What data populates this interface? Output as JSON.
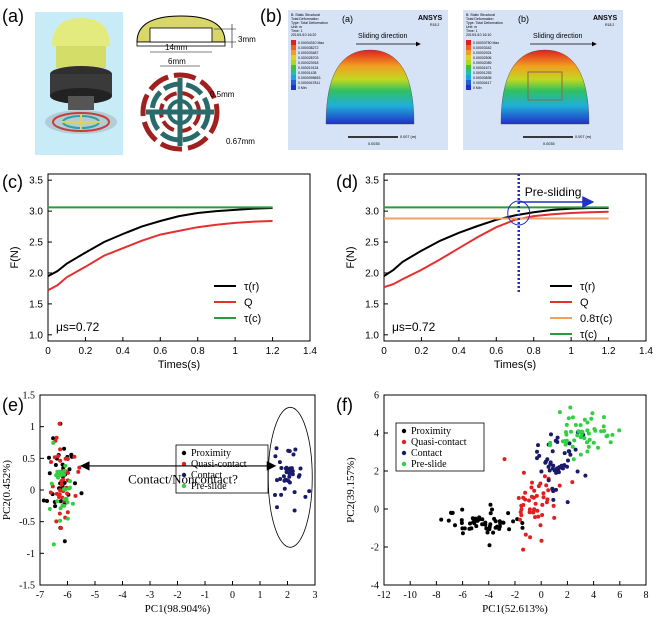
{
  "figure": {
    "panel_labels": [
      "(a)",
      "(b)",
      "(c)",
      "(d)",
      "(e)",
      "(f)"
    ]
  },
  "panel_a": {
    "dims": [
      "3mm",
      "14mm",
      "6mm",
      "0.5mm",
      "0.67mm"
    ]
  },
  "panel_b": {
    "sub_a": {
      "label": "(a)",
      "title_lines": [
        "B: Static Structural",
        "Total Deformation",
        "Type: Total Deformation",
        "Unit: m",
        "Time: 1",
        "2019/1/10 16:20"
      ],
      "legend_values": [
        "0.00004310 Max",
        "0.000038272",
        "0.000033487",
        "0.000028703",
        "0.000023918",
        "0.000019134",
        "0.00001435",
        "0.0000095653",
        "0.0000047811",
        "0 Min"
      ],
      "brand": "ANSYS",
      "version": "R18.2",
      "direction_text": "Sliding direction",
      "scale_text": "0.007 (m)",
      "scale_mid": "0.0035"
    },
    "sub_b": {
      "label": "(b)",
      "title_lines": [
        "B: Static Structural",
        "Total Deformation",
        "Type: Total Deformation",
        "Unit: m",
        "Time: 1",
        "2019/1/10 16:10"
      ],
      "legend_values": [
        "0.00003750 Max",
        "0.00003342",
        "0.00002924",
        "0.00002506",
        "0.00002089",
        "0.00001671",
        "0.00001253",
        "0.00000835",
        "0.00000417",
        "0 Min"
      ],
      "brand": "ANSYS",
      "version": "R18.2",
      "direction_text": "Sliding direction",
      "scale_text": "0.007 (m)",
      "scale_mid": "0.0035"
    }
  },
  "chart_data": [
    {
      "id": "c",
      "type": "line",
      "xlabel": "Times(s)",
      "ylabel": "F(N)",
      "xlim": [
        0,
        1.4
      ],
      "ylim": [
        0.9,
        3.6
      ],
      "xticks": [
        "0",
        "0.2",
        "0.4",
        "0.6",
        "0.8",
        "1",
        "1.2",
        "1.4"
      ],
      "yticks": [
        "1.0",
        "1.5",
        "2.0",
        "2.5",
        "3.0",
        "3.5"
      ],
      "annotation": "μs=0.72",
      "series": [
        {
          "name": "τ(r)",
          "color": "#000000",
          "x": [
            0,
            0.05,
            0.1,
            0.2,
            0.3,
            0.4,
            0.5,
            0.6,
            0.7,
            0.8,
            0.9,
            1.0,
            1.1,
            1.2
          ],
          "y": [
            1.95,
            2.03,
            2.15,
            2.33,
            2.5,
            2.63,
            2.75,
            2.84,
            2.92,
            2.97,
            3.0,
            3.02,
            3.04,
            3.05
          ]
        },
        {
          "name": "Q",
          "color": "#e53030",
          "x": [
            0,
            0.05,
            0.1,
            0.2,
            0.3,
            0.4,
            0.5,
            0.6,
            0.7,
            0.8,
            0.9,
            1.0,
            1.1,
            1.2
          ],
          "y": [
            1.72,
            1.8,
            1.93,
            2.1,
            2.28,
            2.4,
            2.52,
            2.62,
            2.68,
            2.74,
            2.78,
            2.81,
            2.83,
            2.84
          ]
        },
        {
          "name": "τ(c)",
          "color": "#2a9a3a",
          "x": [
            0,
            1.2
          ],
          "y": [
            3.06,
            3.06
          ]
        }
      ]
    },
    {
      "id": "d",
      "type": "line",
      "xlabel": "Times(s)",
      "ylabel": "F(N)",
      "xlim": [
        0,
        1.4
      ],
      "ylim": [
        0.9,
        3.6
      ],
      "xticks": [
        "0",
        "0.2",
        "0.4",
        "0.6",
        "0.8",
        "1",
        "1.2",
        "1.4"
      ],
      "yticks": [
        "1.0",
        "1.5",
        "2.0",
        "2.5",
        "3.0",
        "3.5"
      ],
      "annotation": "μs=0.72",
      "annotation_2": "Pre-sliding",
      "vline_x": 0.72,
      "series": [
        {
          "name": "τ(r)",
          "color": "#000000",
          "x": [
            0,
            0.05,
            0.1,
            0.2,
            0.3,
            0.4,
            0.5,
            0.6,
            0.7,
            0.8,
            0.9,
            1.0,
            1.1,
            1.2
          ],
          "y": [
            1.95,
            2.05,
            2.18,
            2.36,
            2.52,
            2.65,
            2.76,
            2.86,
            2.93,
            2.98,
            3.02,
            3.04,
            3.05,
            3.05
          ]
        },
        {
          "name": "Q",
          "color": "#e53030",
          "x": [
            0,
            0.05,
            0.1,
            0.2,
            0.3,
            0.4,
            0.5,
            0.6,
            0.7,
            0.8,
            0.9,
            1.0,
            1.1,
            1.2
          ],
          "y": [
            1.77,
            1.82,
            1.9,
            2.05,
            2.22,
            2.4,
            2.58,
            2.74,
            2.86,
            2.92,
            2.95,
            2.97,
            2.98,
            2.99
          ]
        },
        {
          "name": "0.8τ(c)",
          "color": "#f0a060",
          "x": [
            0,
            1.2
          ],
          "y": [
            2.88,
            2.88
          ]
        },
        {
          "name": "τ(c)",
          "color": "#2a9a3a",
          "x": [
            0,
            1.2
          ],
          "y": [
            3.06,
            3.06
          ]
        }
      ]
    },
    {
      "id": "e",
      "type": "scatter",
      "xlabel": "PC1(98.904%)",
      "ylabel": "PC2(0.452%)",
      "xlim": [
        -7,
        3
      ],
      "ylim": [
        -1.5,
        1.5
      ],
      "xticks": [
        "-7",
        "-6",
        "-5",
        "-4",
        "-3",
        "-2",
        "-1",
        "0",
        "1",
        "2",
        "3"
      ],
      "yticks": [
        "-1.5",
        "-1",
        "-0.5",
        "0",
        "0.5",
        "1",
        "1.5"
      ],
      "annotation": "Contact/Noncontact?",
      "legend": [
        {
          "name": "Proximity",
          "color": "#000000"
        },
        {
          "name": "Quasi-contact",
          "color": "#e02020"
        },
        {
          "name": "Contact",
          "color": "#1a1a6a"
        },
        {
          "name": "Pre-slide",
          "color": "#30d040"
        }
      ],
      "clusters": [
        {
          "series": "Proximity",
          "cx": -6.2,
          "sx": 0.25,
          "cy": 0.2,
          "sy": 0.4,
          "n": 40
        },
        {
          "series": "Quasi-contact",
          "cx": -6.2,
          "sx": 0.25,
          "cy": 0.15,
          "sy": 0.4,
          "n": 40
        },
        {
          "series": "Pre-slide",
          "cx": -6.2,
          "sx": 0.25,
          "cy": 0.25,
          "sy": 0.4,
          "n": 30
        },
        {
          "series": "Contact",
          "cx": 2.1,
          "sx": 0.25,
          "cy": 0.2,
          "sy": 0.25,
          "n": 40
        }
      ]
    },
    {
      "id": "f",
      "type": "scatter",
      "xlabel": "PC1(52.613%)",
      "ylabel": "PC2(39.157%)",
      "xlim": [
        -12,
        8
      ],
      "ylim": [
        -4,
        6
      ],
      "xticks": [
        "-12",
        "-10",
        "-8",
        "-6",
        "-4",
        "-2",
        "0",
        "2",
        "4",
        "6",
        "8"
      ],
      "yticks": [
        "-4",
        "-2",
        "0",
        "2",
        "4",
        "6"
      ],
      "legend": [
        {
          "name": "Proximity",
          "color": "#000000"
        },
        {
          "name": "Quasi-contact",
          "color": "#e02020"
        },
        {
          "name": "Contact",
          "color": "#1a1a6a"
        },
        {
          "name": "Pre-slide",
          "color": "#30d040"
        }
      ],
      "clusters": [
        {
          "series": "Proximity",
          "cx": -4.5,
          "sx": 1.5,
          "cy": -0.8,
          "sy": 0.4,
          "n": 55
        },
        {
          "series": "Quasi-contact",
          "cx": -0.5,
          "sx": 1.0,
          "cy": 0.3,
          "sy": 1.0,
          "n": 50
        },
        {
          "series": "Contact",
          "cx": 1.0,
          "sx": 0.9,
          "cy": 2.3,
          "sy": 0.8,
          "n": 50
        },
        {
          "series": "Pre-slide",
          "cx": 3.0,
          "sx": 1.0,
          "cy": 4.0,
          "sy": 0.6,
          "n": 50
        }
      ]
    }
  ]
}
